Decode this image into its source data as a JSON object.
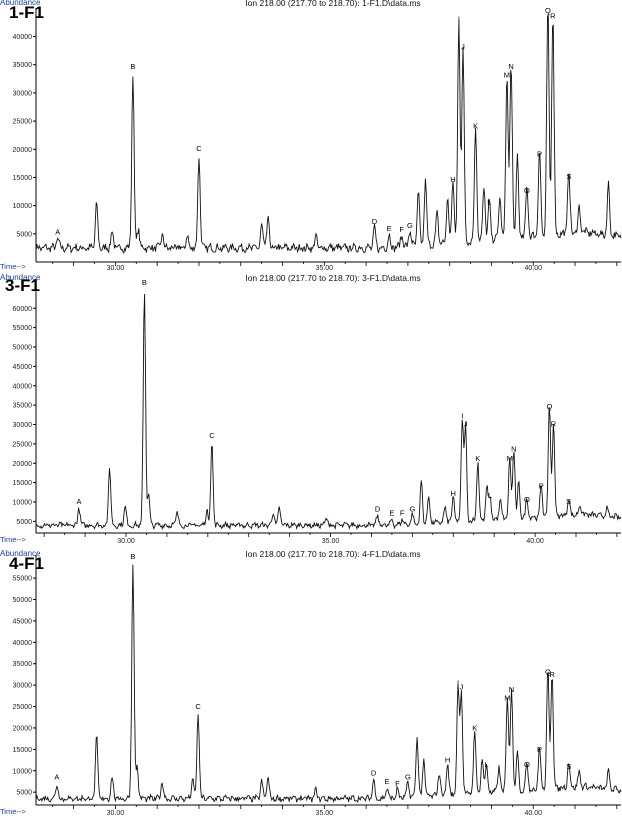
{
  "chart_data": [
    {
      "type": "line",
      "panel_label": "1-F1",
      "title": "Ion 218.00 (217.70 to 218.70): 1-F1.D\\data.ms",
      "ylabel": "Abundance",
      "xlabel": "Time-->",
      "xlim": [
        28.1,
        42.1
      ],
      "ylim": [
        0,
        44000
      ],
      "xticks": [
        30.0,
        35.0,
        40.0
      ],
      "xtick_labels": [
        "30.00",
        "35.00",
        "40.00"
      ],
      "yticks": [
        5000,
        10000,
        15000,
        20000,
        25000,
        30000,
        35000,
        40000
      ],
      "baseline": 2500,
      "series": [
        {
          "peaks": [
            {
              "x": 28.62,
              "y": 4200,
              "label": "A"
            },
            {
              "x": 29.55,
              "y": 10500
            },
            {
              "x": 29.92,
              "y": 5500
            },
            {
              "x": 30.42,
              "y": 33500,
              "label": "B"
            },
            {
              "x": 30.55,
              "y": 6000
            },
            {
              "x": 31.12,
              "y": 5000
            },
            {
              "x": 31.72,
              "y": 4600
            },
            {
              "x": 32.0,
              "y": 19000,
              "label": "C"
            },
            {
              "x": 33.5,
              "y": 6500
            },
            {
              "x": 33.65,
              "y": 8000
            },
            {
              "x": 34.8,
              "y": 4500
            },
            {
              "x": 36.2,
              "y": 6000,
              "label": "D"
            },
            {
              "x": 36.55,
              "y": 4800,
              "label": "E"
            },
            {
              "x": 36.85,
              "y": 4600,
              "label": "F"
            },
            {
              "x": 37.05,
              "y": 5300,
              "label": "G"
            },
            {
              "x": 37.25,
              "y": 12000
            },
            {
              "x": 37.42,
              "y": 14000
            },
            {
              "x": 37.7,
              "y": 8000
            },
            {
              "x": 37.95,
              "y": 10500
            },
            {
              "x": 38.08,
              "y": 13500,
              "label": "H"
            },
            {
              "x": 38.22,
              "y": 42000,
              "label": "I"
            },
            {
              "x": 38.32,
              "y": 37000,
              "label": "J"
            },
            {
              "x": 38.62,
              "y": 23000,
              "label": "K"
            },
            {
              "x": 38.82,
              "y": 12000
            },
            {
              "x": 38.95,
              "y": 9500,
              "label": "L"
            },
            {
              "x": 39.2,
              "y": 10000
            },
            {
              "x": 39.37,
              "y": 32000,
              "label": "M"
            },
            {
              "x": 39.47,
              "y": 33500,
              "label": "N"
            },
            {
              "x": 39.62,
              "y": 17000
            },
            {
              "x": 39.85,
              "y": 11500,
              "label": "O"
            },
            {
              "x": 40.15,
              "y": 18000,
              "label": "P"
            },
            {
              "x": 40.35,
              "y": 43500,
              "label": "Q"
            },
            {
              "x": 40.47,
              "y": 42500,
              "label": "R"
            },
            {
              "x": 40.85,
              "y": 14000,
              "label": "S"
            },
            {
              "x": 41.1,
              "y": 7000
            },
            {
              "x": 41.8,
              "y": 11500
            }
          ]
        }
      ]
    },
    {
      "type": "line",
      "panel_label": "3-F1",
      "title": "Ion 218.00 (217.70 to 218.70): 3-F1.D\\data.ms",
      "ylabel": "Abundance",
      "xlabel": "Time-->",
      "xlim": [
        27.8,
        42.1
      ],
      "ylim": [
        2000,
        66000
      ],
      "xticks": [
        30.0,
        35.0,
        40.0
      ],
      "xtick_labels": [
        "30.00",
        "35.00",
        "40.00"
      ],
      "yticks": [
        5000,
        10000,
        15000,
        20000,
        25000,
        30000,
        35000,
        40000,
        45000,
        50000,
        55000,
        60000
      ],
      "baseline": 4000,
      "series": [
        {
          "peaks": [
            {
              "x": 28.85,
              "y": 8500,
              "label": "A"
            },
            {
              "x": 29.6,
              "y": 19000
            },
            {
              "x": 29.98,
              "y": 9000
            },
            {
              "x": 30.45,
              "y": 65000,
              "label": "B"
            },
            {
              "x": 30.55,
              "y": 12000
            },
            {
              "x": 31.25,
              "y": 7500
            },
            {
              "x": 31.98,
              "y": 8000
            },
            {
              "x": 32.1,
              "y": 25500,
              "label": "C"
            },
            {
              "x": 33.6,
              "y": 7500
            },
            {
              "x": 33.75,
              "y": 8500
            },
            {
              "x": 34.9,
              "y": 6000
            },
            {
              "x": 36.15,
              "y": 6500,
              "label": "D"
            },
            {
              "x": 36.5,
              "y": 5500,
              "label": "E"
            },
            {
              "x": 36.75,
              "y": 5500,
              "label": "F"
            },
            {
              "x": 37.0,
              "y": 6500,
              "label": "G"
            },
            {
              "x": 37.22,
              "y": 15000
            },
            {
              "x": 37.4,
              "y": 11000
            },
            {
              "x": 37.8,
              "y": 8000
            },
            {
              "x": 38.0,
              "y": 10500,
              "label": "H"
            },
            {
              "x": 38.22,
              "y": 30500,
              "label": "I"
            },
            {
              "x": 38.3,
              "y": 28500,
              "label": "J"
            },
            {
              "x": 38.6,
              "y": 19500,
              "label": "K"
            },
            {
              "x": 38.82,
              "y": 12500
            },
            {
              "x": 38.9,
              "y": 10000,
              "label": "L"
            },
            {
              "x": 39.15,
              "y": 9000
            },
            {
              "x": 39.38,
              "y": 19500,
              "label": "M"
            },
            {
              "x": 39.48,
              "y": 22000,
              "label": "N"
            },
            {
              "x": 39.6,
              "y": 13000
            },
            {
              "x": 39.8,
              "y": 9000,
              "label": "O"
            },
            {
              "x": 40.15,
              "y": 12500,
              "label": "P"
            },
            {
              "x": 40.35,
              "y": 33000,
              "label": "Q"
            },
            {
              "x": 40.45,
              "y": 28500,
              "label": "R"
            },
            {
              "x": 40.82,
              "y": 8500,
              "label": "S"
            },
            {
              "x": 41.1,
              "y": 6500
            },
            {
              "x": 41.75,
              "y": 6000
            }
          ]
        }
      ]
    },
    {
      "type": "line",
      "panel_label": "4-F1",
      "title": "Ion 218.00 (217.70 to 218.70): 4-F1.D\\data.ms",
      "ylabel": "Abundance",
      "xlabel": "Time-->",
      "xlim": [
        28.1,
        42.1
      ],
      "ylim": [
        2000,
        59000
      ],
      "xticks": [
        30.0,
        35.0,
        40.0
      ],
      "xtick_labels": [
        "30.00",
        "35.00",
        "40.00"
      ],
      "yticks": [
        5000,
        10000,
        15000,
        20000,
        25000,
        30000,
        35000,
        40000,
        45000,
        50000,
        55000
      ],
      "baseline": 3500,
      "series": [
        {
          "peaks": [
            {
              "x": 28.6,
              "y": 7000,
              "label": "A"
            },
            {
              "x": 29.55,
              "y": 18000
            },
            {
              "x": 29.92,
              "y": 8500
            },
            {
              "x": 30.42,
              "y": 58500,
              "label": "B"
            },
            {
              "x": 30.52,
              "y": 11000
            },
            {
              "x": 31.12,
              "y": 7500
            },
            {
              "x": 31.85,
              "y": 8000
            },
            {
              "x": 31.98,
              "y": 23500,
              "label": "C"
            },
            {
              "x": 33.5,
              "y": 7500
            },
            {
              "x": 33.65,
              "y": 8500
            },
            {
              "x": 34.8,
              "y": 5500
            },
            {
              "x": 36.18,
              "y": 8000,
              "label": "D"
            },
            {
              "x": 36.5,
              "y": 6000,
              "label": "E"
            },
            {
              "x": 36.75,
              "y": 5500,
              "label": "F"
            },
            {
              "x": 37.0,
              "y": 7000,
              "label": "G"
            },
            {
              "x": 37.22,
              "y": 17500
            },
            {
              "x": 37.38,
              "y": 12000
            },
            {
              "x": 37.75,
              "y": 9000
            },
            {
              "x": 37.95,
              "y": 11000,
              "label": "H"
            },
            {
              "x": 38.2,
              "y": 29000,
              "label": "I"
            },
            {
              "x": 38.28,
              "y": 28000,
              "label": "J"
            },
            {
              "x": 38.6,
              "y": 18500,
              "label": "K"
            },
            {
              "x": 38.78,
              "y": 11500
            },
            {
              "x": 38.88,
              "y": 10000,
              "label": "L"
            },
            {
              "x": 39.18,
              "y": 9500
            },
            {
              "x": 39.38,
              "y": 25500,
              "label": "M"
            },
            {
              "x": 39.48,
              "y": 27500,
              "label": "N"
            },
            {
              "x": 39.62,
              "y": 13000
            },
            {
              "x": 39.85,
              "y": 10000,
              "label": "O"
            },
            {
              "x": 40.15,
              "y": 13500,
              "label": "P"
            },
            {
              "x": 40.35,
              "y": 31500,
              "label": "Q"
            },
            {
              "x": 40.45,
              "y": 31000,
              "label": "R"
            },
            {
              "x": 40.85,
              "y": 9500,
              "label": "S"
            },
            {
              "x": 41.1,
              "y": 7000
            },
            {
              "x": 41.8,
              "y": 7500
            }
          ]
        }
      ]
    }
  ]
}
